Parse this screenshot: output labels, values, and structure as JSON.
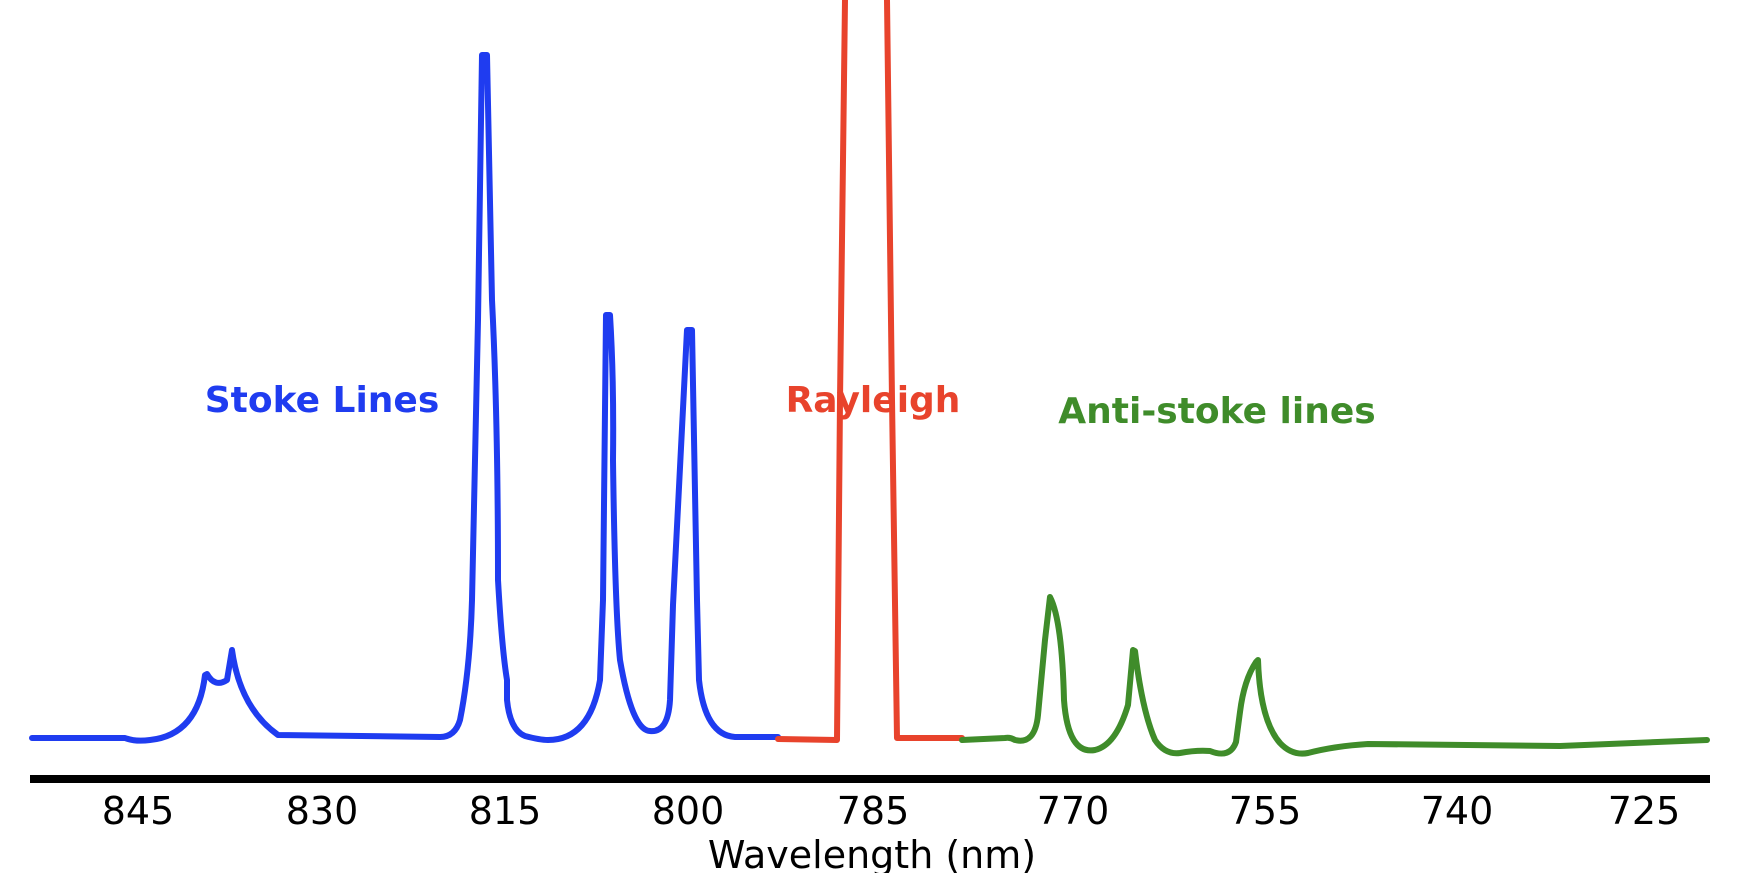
{
  "colors": {
    "stokes": "#1f3cf0",
    "rayleigh": "#e8432c",
    "anti_stokes": "#3f8c2a",
    "axis": "#000000"
  },
  "labels": {
    "stokes": "Stoke Lines",
    "rayleigh": "Rayleigh",
    "anti_stokes": "Anti-stoke lines"
  },
  "axis": {
    "title": "Wavelength (nm)",
    "direction": "decreasing left to right",
    "ticks": [
      "845",
      "830",
      "815",
      "800",
      "785",
      "770",
      "755",
      "740",
      "725"
    ]
  }
}
